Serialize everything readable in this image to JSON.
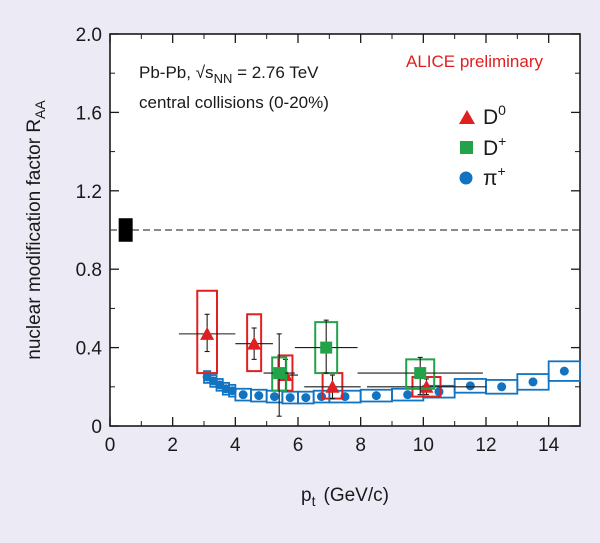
{
  "chart_data": {
    "type": "scatter",
    "title": "",
    "xlabel": "p",
    "xlabel_sub": "t",
    "xlabel_units": "(GeV/c)",
    "ylabel": "nuclear modification factor R",
    "ylabel_sub": "AA",
    "xlim": [
      0,
      15
    ],
    "ylim": [
      0,
      2.0
    ],
    "x_ticks": [
      0,
      2,
      4,
      6,
      8,
      10,
      12,
      14
    ],
    "y_ticks": [
      0,
      0.4,
      0.8,
      1.2,
      1.6,
      2.0
    ],
    "x_tick_labels": [
      "0",
      "2",
      "4",
      "6",
      "8",
      "10",
      "12",
      "14"
    ],
    "y_tick_labels": [
      "0",
      "0.4",
      "0.8",
      "1.2",
      "1.6",
      "2.0"
    ],
    "reference_line": 1.0,
    "normalization_uncertainty": {
      "x": 0.5,
      "y_low": 0.94,
      "y_high": 1.06
    },
    "annotations": {
      "system_prefix": "Pb-Pb,",
      "energy_sqrt": "√s",
      "energy_sub": "NN",
      "energy_value": " = 2.76 TeV",
      "centrality": "central collisions (0-20%)",
      "preliminary": "ALICE preliminary"
    },
    "legend": [
      {
        "name": "D",
        "sup": "0",
        "color": "#e02020",
        "marker": "triangle"
      },
      {
        "name": "D",
        "sup": "+",
        "color": "#22a34a",
        "marker": "square"
      },
      {
        "name": "π",
        "sup": "+",
        "color": "#1273c1",
        "marker": "circle"
      }
    ],
    "series": [
      {
        "name": "D0",
        "color": "#e02020",
        "marker": "triangle",
        "points": [
          {
            "x": 3.1,
            "y": 0.47,
            "xerr": 0.9,
            "stat_lo": 0.38,
            "stat_hi": 0.57,
            "sys_lo": 0.27,
            "sys_hi": 0.69
          },
          {
            "x": 4.6,
            "y": 0.42,
            "xerr": 0.6,
            "stat_lo": 0.34,
            "stat_hi": 0.5,
            "sys_lo": 0.28,
            "sys_hi": 0.57
          },
          {
            "x": 5.6,
            "y": 0.26,
            "xerr": 0.4,
            "stat_lo": 0.18,
            "stat_hi": 0.34,
            "sys_lo": 0.18,
            "sys_hi": 0.36
          },
          {
            "x": 7.1,
            "y": 0.2,
            "xerr": 0.9,
            "stat_lo": 0.14,
            "stat_hi": 0.26,
            "sys_lo": 0.14,
            "sys_hi": 0.27
          },
          {
            "x": 10.1,
            "y": 0.2,
            "xerr": 1.9,
            "stat_lo": 0.16,
            "stat_hi": 0.24,
            "sys_lo": 0.15,
            "sys_hi": 0.25
          }
        ]
      },
      {
        "name": "D+",
        "color": "#22a34a",
        "marker": "square",
        "points": [
          {
            "x": 5.4,
            "y": 0.27,
            "xerr": 0.5,
            "stat_lo": 0.05,
            "stat_hi": 0.47,
            "sys_lo": 0.18,
            "sys_hi": 0.35
          },
          {
            "x": 6.9,
            "y": 0.4,
            "xerr": 1.0,
            "stat_lo": 0.27,
            "stat_hi": 0.54,
            "sys_lo": 0.27,
            "sys_hi": 0.53
          },
          {
            "x": 9.9,
            "y": 0.27,
            "xerr": 2.0,
            "stat_lo": 0.16,
            "stat_hi": 0.35,
            "sys_lo": 0.19,
            "sys_hi": 0.34
          }
        ]
      },
      {
        "name": "π+",
        "color": "#1273c1",
        "marker": "circle",
        "points": [
          {
            "x": 3.1,
            "y": 0.25
          },
          {
            "x": 3.3,
            "y": 0.23
          },
          {
            "x": 3.5,
            "y": 0.21
          },
          {
            "x": 3.7,
            "y": 0.19
          },
          {
            "x": 3.9,
            "y": 0.18
          },
          {
            "x": 4.25,
            "y": 0.16
          },
          {
            "x": 4.75,
            "y": 0.155
          },
          {
            "x": 5.25,
            "y": 0.15
          },
          {
            "x": 5.75,
            "y": 0.145
          },
          {
            "x": 6.25,
            "y": 0.145
          },
          {
            "x": 6.75,
            "y": 0.15
          },
          {
            "x": 7.5,
            "y": 0.15
          },
          {
            "x": 8.5,
            "y": 0.155
          },
          {
            "x": 9.5,
            "y": 0.16
          },
          {
            "x": 10.5,
            "y": 0.175
          },
          {
            "x": 11.5,
            "y": 0.205
          },
          {
            "x": 12.5,
            "y": 0.2
          },
          {
            "x": 13.5,
            "y": 0.225
          },
          {
            "x": 14.5,
            "y": 0.28
          }
        ],
        "sys_boxes": [
          {
            "x0": 3.0,
            "x1": 3.2,
            "lo": 0.22,
            "hi": 0.28
          },
          {
            "x0": 3.2,
            "x1": 3.4,
            "lo": 0.2,
            "hi": 0.26
          },
          {
            "x0": 3.4,
            "x1": 3.6,
            "lo": 0.18,
            "hi": 0.24
          },
          {
            "x0": 3.6,
            "x1": 3.8,
            "lo": 0.16,
            "hi": 0.22
          },
          {
            "x0": 3.8,
            "x1": 4.0,
            "lo": 0.15,
            "hi": 0.21
          },
          {
            "x0": 4.0,
            "x1": 4.5,
            "lo": 0.13,
            "hi": 0.19
          },
          {
            "x0": 4.5,
            "x1": 5.0,
            "lo": 0.125,
            "hi": 0.185
          },
          {
            "x0": 5.0,
            "x1": 5.5,
            "lo": 0.12,
            "hi": 0.18
          },
          {
            "x0": 5.5,
            "x1": 6.0,
            "lo": 0.115,
            "hi": 0.175
          },
          {
            "x0": 6.0,
            "x1": 6.5,
            "lo": 0.115,
            "hi": 0.175
          },
          {
            "x0": 6.5,
            "x1": 7.0,
            "lo": 0.12,
            "hi": 0.18
          },
          {
            "x0": 7.0,
            "x1": 8.0,
            "lo": 0.12,
            "hi": 0.18
          },
          {
            "x0": 8.0,
            "x1": 9.0,
            "lo": 0.125,
            "hi": 0.185
          },
          {
            "x0": 9.0,
            "x1": 10.0,
            "lo": 0.13,
            "hi": 0.19
          },
          {
            "x0": 10.0,
            "x1": 11.0,
            "lo": 0.145,
            "hi": 0.205
          },
          {
            "x0": 11.0,
            "x1": 12.0,
            "lo": 0.17,
            "hi": 0.24
          },
          {
            "x0": 12.0,
            "x1": 13.0,
            "lo": 0.165,
            "hi": 0.235
          },
          {
            "x0": 13.0,
            "x1": 14.0,
            "lo": 0.185,
            "hi": 0.265
          },
          {
            "x0": 14.0,
            "x1": 15.0,
            "lo": 0.23,
            "hi": 0.33
          }
        ]
      }
    ]
  }
}
